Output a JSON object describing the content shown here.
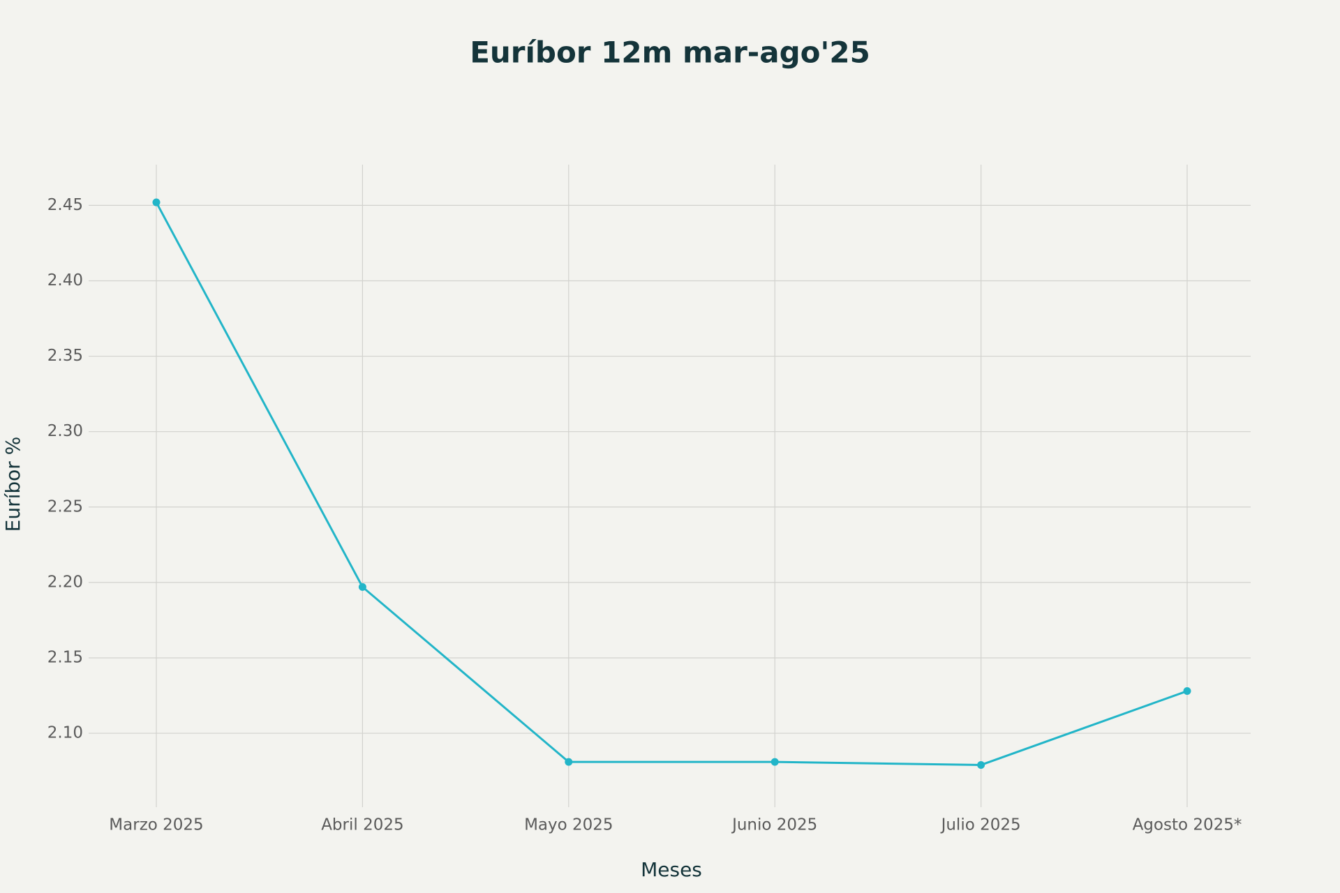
{
  "chart_data": {
    "type": "line",
    "title": "Euríbor 12m mar-ago'25",
    "x_label": "Meses",
    "y_label": "Euríbor %",
    "categories": [
      "Marzo 2025",
      "Abril 2025",
      "Mayo 2025",
      "Junio 2025",
      "Julio 2025",
      "Agosto 2025*"
    ],
    "series": [
      {
        "name": "Euríbor 12m",
        "color": "#22b5c8",
        "values": [
          2.452,
          2.197,
          2.081,
          2.081,
          2.079,
          2.128
        ]
      }
    ],
    "ylim": [
      2.051,
      2.477
    ],
    "yticks": [
      {
        "value": 2.1,
        "label": "2.10"
      },
      2.15,
      {
        "value": 2.2,
        "label": "2.20"
      },
      2.25,
      {
        "value": 2.3,
        "label": "2.30"
      },
      2.35,
      {
        "value": 2.4,
        "label": "2.40"
      },
      2.45
    ],
    "grid": true
  }
}
